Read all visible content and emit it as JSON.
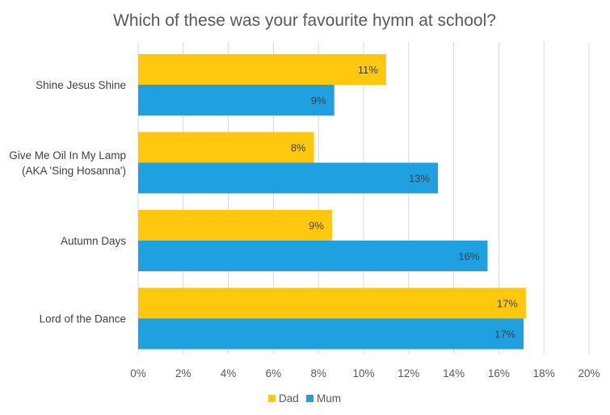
{
  "chart_data": {
    "type": "bar",
    "orientation": "horizontal",
    "title": "Which of these was your favourite hymn at school?",
    "categories": [
      [
        "Shine Jesus Shine"
      ],
      [
        "Give Me Oil In My Lamp",
        "(AKA 'Sing Hosanna')"
      ],
      [
        "Autumn Days"
      ],
      [
        "Lord of the Dance"
      ]
    ],
    "series": [
      {
        "name": "Dad",
        "color": "#FFC80F",
        "values": [
          11,
          7.8,
          8.6,
          17.2
        ],
        "labels": [
          "11%",
          "8%",
          "9%",
          "17%"
        ]
      },
      {
        "name": "Mum",
        "color": "#1FA0E0",
        "values": [
          8.7,
          13.3,
          15.5,
          17.1
        ],
        "labels": [
          "9%",
          "13%",
          "16%",
          "17%"
        ]
      }
    ],
    "xlim": [
      0,
      20
    ],
    "xticks": [
      "0%",
      "2%",
      "4%",
      "6%",
      "8%",
      "10%",
      "12%",
      "14%",
      "16%",
      "18%",
      "20%"
    ],
    "grid": true,
    "legend_position": "bottom"
  }
}
